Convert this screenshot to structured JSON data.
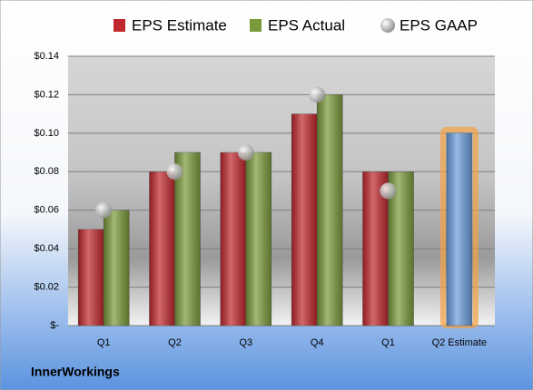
{
  "chart_data": {
    "type": "bar",
    "footer": "InnerWorkings",
    "categories": [
      "Q1",
      "Q2",
      "Q3",
      "Q4",
      "Q1",
      "Q2 Estimate"
    ],
    "series": [
      {
        "name": "EPS Estimate",
        "color": "#c0282d",
        "values": [
          0.05,
          0.08,
          0.09,
          0.11,
          0.08,
          0.1
        ]
      },
      {
        "name": "EPS Actual",
        "color": "#7a9a3a",
        "values": [
          0.06,
          0.09,
          0.09,
          0.12,
          0.08,
          null
        ]
      },
      {
        "name": "EPS GAAP",
        "color": "#a6a6a6",
        "marker": "circle",
        "values": [
          0.06,
          0.08,
          0.09,
          0.12,
          0.07,
          null
        ]
      }
    ],
    "forecast_color": "#6b9ddc",
    "ylim": [
      0,
      0.14
    ],
    "yticks": [
      {
        "value": 0,
        "label": "$-"
      },
      {
        "value": 0.02,
        "label": "$0.02"
      },
      {
        "value": 0.04,
        "label": "$0.04"
      },
      {
        "value": 0.06,
        "label": "$0.06"
      },
      {
        "value": 0.08,
        "label": "$0.08"
      },
      {
        "value": 0.1,
        "label": "$0.10"
      },
      {
        "value": 0.12,
        "label": "$0.12"
      },
      {
        "value": 0.14,
        "label": "$0.14"
      }
    ],
    "grid": true
  }
}
